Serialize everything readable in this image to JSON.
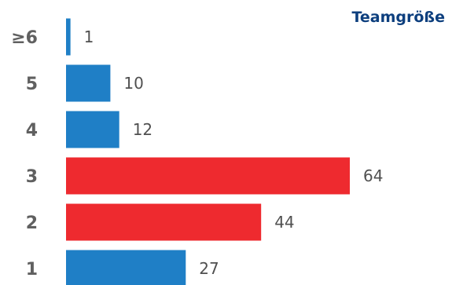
{
  "chart_data": {
    "type": "bar",
    "orientation": "horizontal",
    "title": "Teamgröße",
    "categories": [
      "≥6",
      "5",
      "4",
      "3",
      "2",
      "1"
    ],
    "values": [
      1,
      10,
      12,
      64,
      44,
      27
    ],
    "bar_colors": [
      "#1f7fc6",
      "#1f7fc6",
      "#1f7fc6",
      "#ee2a2f",
      "#ee2a2f",
      "#1f7fc6"
    ],
    "xlabel": "",
    "ylabel": "",
    "xlim": [
      0,
      64
    ],
    "grid": false,
    "legend": "none"
  },
  "colors": {
    "title": "#0d3f7e",
    "category_label": "#606060",
    "value_label": "#505050",
    "blue": "#1f7fc6",
    "red": "#ee2a2f"
  }
}
